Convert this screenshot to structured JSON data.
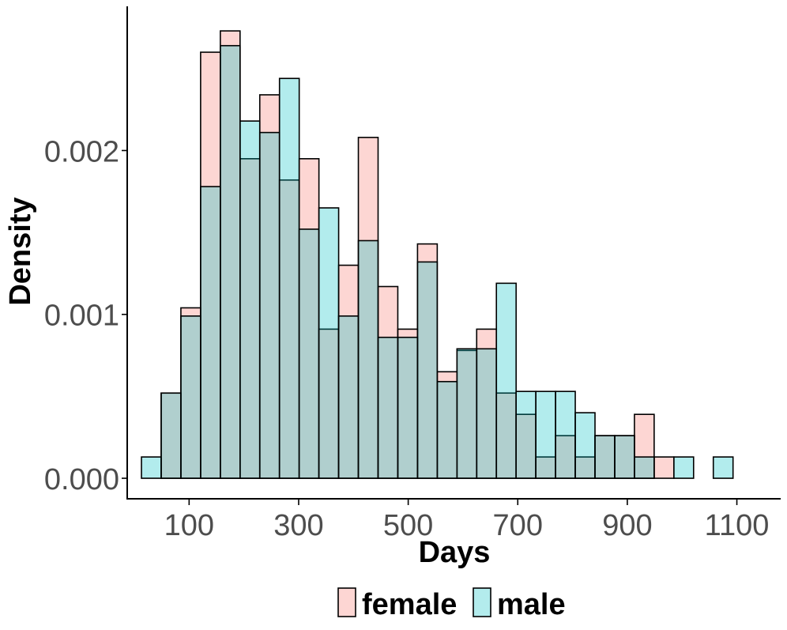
{
  "chart_data": {
    "type": "bar",
    "subtype": "histogram-overlay",
    "title": "",
    "xlabel": "Days",
    "ylabel": "Density",
    "xlim": [
      -13,
      1180
    ],
    "ylim": [
      -0.00013,
      0.00288
    ],
    "bin_width": 36,
    "x_ticks": [
      100,
      300,
      500,
      700,
      900,
      1100
    ],
    "y_ticks": [
      0.0,
      0.001,
      0.002
    ],
    "y_tick_labels": [
      "0.000",
      "0.001",
      "0.002"
    ],
    "bin_starts": [
      13,
      49,
      85,
      121,
      157,
      193,
      229,
      265,
      301,
      337,
      373,
      409,
      445,
      481,
      517,
      553,
      589,
      625,
      661,
      697,
      733,
      769,
      805,
      841,
      877,
      913,
      949,
      985,
      1021,
      1057
    ],
    "series": [
      {
        "name": "female",
        "color": "#F8766D",
        "values": [
          0,
          0.00052,
          0.00104,
          0.0026,
          0.00273,
          0.00195,
          0.00234,
          0.00182,
          0.00195,
          0.00091,
          0.0013,
          0.00208,
          0.00117,
          0.00091,
          0.00143,
          0.00065,
          0.00078,
          0.00091,
          0.00052,
          0.00039,
          0.00013,
          0.00026,
          0.00013,
          0.00026,
          0.00026,
          0.00039,
          0.00013,
          0,
          0,
          0
        ]
      },
      {
        "name": "male",
        "color": "#00BFC4",
        "values": [
          0.00013,
          0.00052,
          0.00099,
          0.00178,
          0.00264,
          0.00218,
          0.00211,
          0.00244,
          0.00152,
          0.00165,
          0.00099,
          0.00145,
          0.00086,
          0.00086,
          0.00132,
          0.00059,
          0.00079,
          0.00079,
          0.00119,
          0.00053,
          0.00053,
          0.00053,
          0.0004,
          0.00026,
          0.00026,
          0.00013,
          0,
          0.00013,
          0,
          0.00013
        ]
      }
    ],
    "legend": {
      "position": "bottom",
      "entries": [
        "female",
        "male"
      ]
    }
  }
}
